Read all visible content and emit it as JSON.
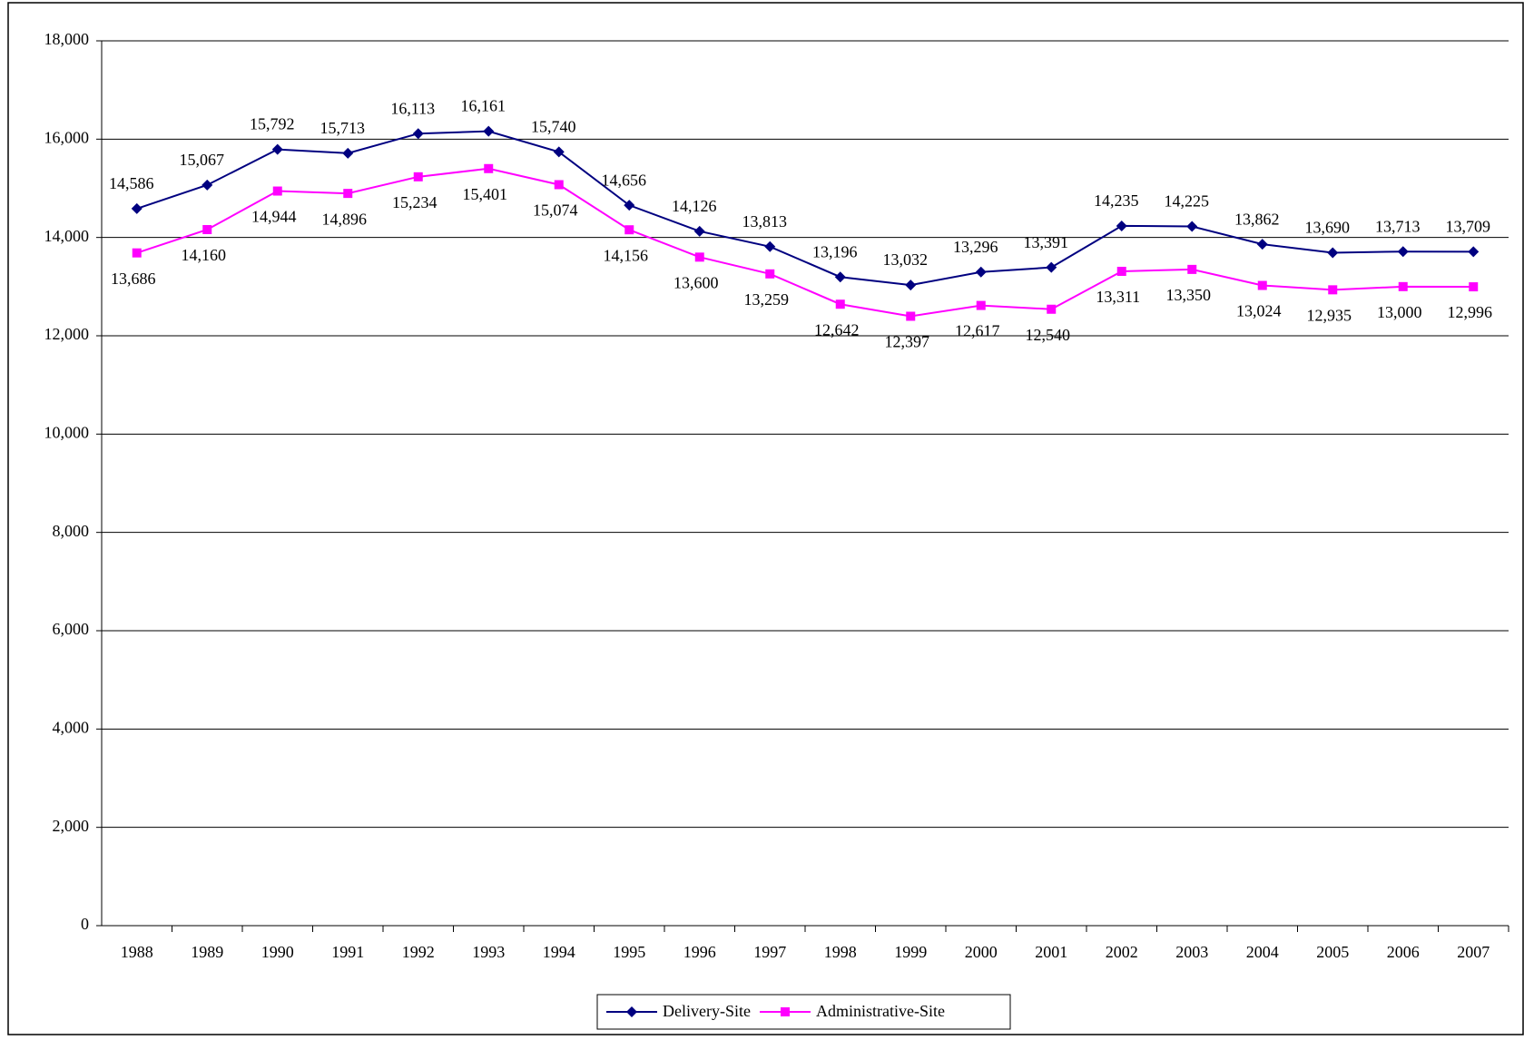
{
  "chart_data": {
    "type": "line",
    "categories": [
      "1988",
      "1989",
      "1990",
      "1991",
      "1992",
      "1993",
      "1994",
      "1995",
      "1996",
      "1997",
      "1998",
      "1999",
      "2000",
      "2001",
      "2002",
      "2003",
      "2004",
      "2005",
      "2006",
      "2007"
    ],
    "series": [
      {
        "name": "Delivery-Site",
        "color": "#000080",
        "marker": "diamond",
        "values": [
          14586,
          15067,
          15792,
          15713,
          16113,
          16161,
          15740,
          14656,
          14126,
          13813,
          13196,
          13032,
          13296,
          13391,
          14235,
          14225,
          13862,
          13690,
          13713,
          13709
        ],
        "value_labels": [
          "14,586",
          "15,067",
          "15,792",
          "15,713",
          "16,113",
          "16,161",
          "15,740",
          "14,656",
          "14,126",
          "13,813",
          "13,196",
          "13,032",
          "13,296",
          "13,391",
          "14,235",
          "14,225",
          "13,862",
          "13,690",
          "13,713",
          "13,709"
        ]
      },
      {
        "name": "Administrative-Site",
        "color": "#ff00ff",
        "marker": "square",
        "values": [
          13686,
          14160,
          14944,
          14896,
          15234,
          15401,
          15074,
          14156,
          13600,
          13259,
          12642,
          12397,
          12617,
          12540,
          13311,
          13350,
          13024,
          12935,
          13000,
          12996
        ],
        "value_labels": [
          "13,686",
          "14,160",
          "14,944",
          "14,896",
          "15,234",
          "15,401",
          "15,074",
          "14,156",
          "13,600",
          "13,259",
          "12,642",
          "12,397",
          "12,617",
          "12,540",
          "13,311",
          "13,350",
          "13,024",
          "12,935",
          "13,000",
          "12,996"
        ]
      }
    ],
    "ylim": [
      0,
      18000
    ],
    "yticks": [
      0,
      {
        "value": 2000,
        "label": "2,000"
      },
      {
        "value": 4000,
        "label": "4,000"
      },
      {
        "value": 6000,
        "label": "6,000"
      },
      {
        "value": 8000,
        "label": "8,000"
      },
      {
        "value": 10000,
        "label": "10,000"
      },
      {
        "value": 12000,
        "label": "12,000"
      },
      {
        "value": 14000,
        "label": "14,000"
      },
      {
        "value": 16000,
        "label": "16,000"
      },
      {
        "value": 18000,
        "label": "18,000"
      }
    ],
    "grid": true,
    "legend": "bottom"
  }
}
